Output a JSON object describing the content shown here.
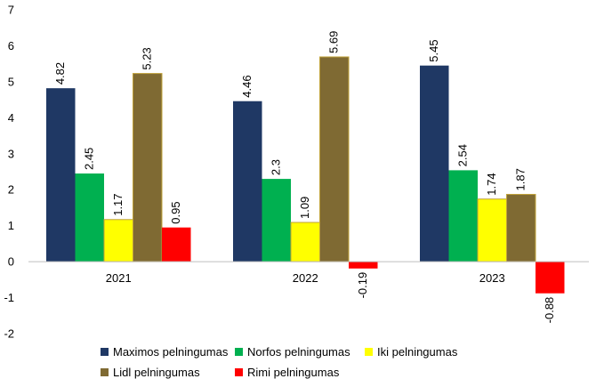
{
  "chart_data": {
    "type": "bar",
    "title": "",
    "xlabel": "",
    "ylabel": "",
    "ylim": [
      -2,
      7
    ],
    "yticks": [
      -2,
      -1,
      0,
      1,
      2,
      3,
      4,
      5,
      6,
      7
    ],
    "grid": false,
    "legend_position": "bottom",
    "categories": [
      "2021",
      "2022",
      "2023"
    ],
    "series": [
      {
        "name": "Maximos pelningumas",
        "color": "#1f3864",
        "values": [
          4.82,
          4.46,
          5.45
        ],
        "labels": [
          "4.82",
          "4.46",
          "5.45"
        ]
      },
      {
        "name": "Norfos pelningumas",
        "color": "#00b050",
        "values": [
          2.45,
          2.3,
          2.54
        ],
        "labels": [
          "2.45",
          "2.3",
          "2.54"
        ]
      },
      {
        "name": "Iki pelningumas",
        "color": "#ffff00",
        "values": [
          1.17,
          1.09,
          1.74
        ],
        "labels": [
          "1.17",
          "1.09",
          "1.74"
        ]
      },
      {
        "name": "Lidl pelningumas",
        "color": "#7f6a33",
        "values": [
          5.23,
          5.69,
          1.87
        ],
        "labels": [
          "5.23",
          "5.69",
          "1.87"
        ]
      },
      {
        "name": "Rimi pelningumas",
        "color": "#ff0000",
        "values": [
          0.95,
          -0.19,
          -0.88
        ],
        "labels": [
          "0.95",
          "-0.19",
          "-0.88"
        ]
      }
    ]
  }
}
